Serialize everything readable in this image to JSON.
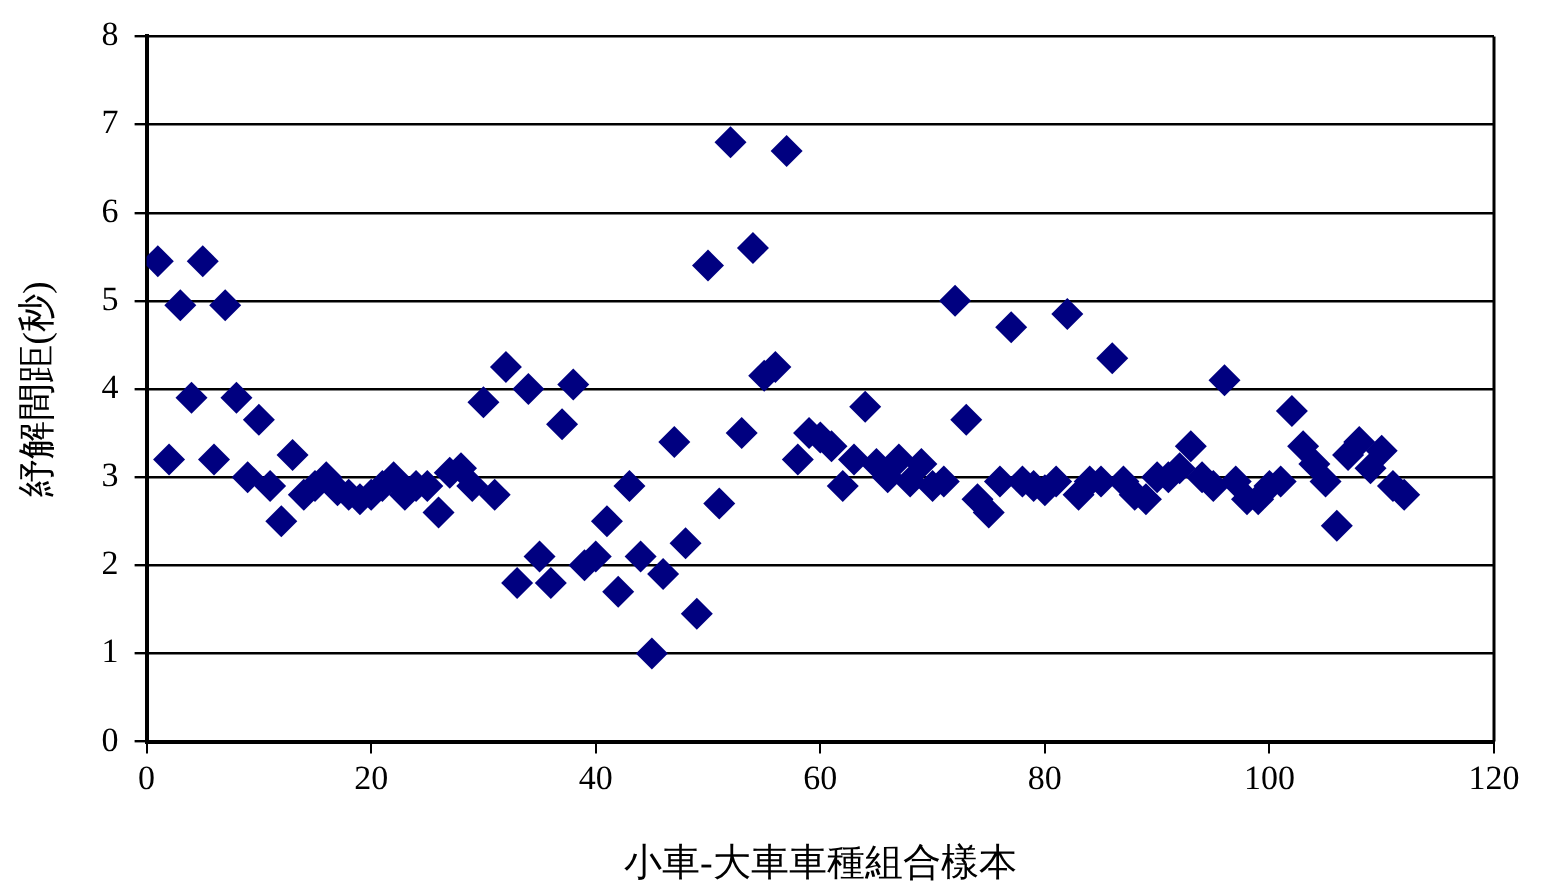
{
  "chart_data": {
    "type": "scatter",
    "xlabel": "小車-大車車種組合樣本",
    "ylabel": "紓解間距(秒)",
    "x": [
      1,
      2,
      3,
      4,
      5,
      6,
      7,
      8,
      9,
      10,
      11,
      12,
      13,
      14,
      15,
      16,
      17,
      18,
      19,
      20,
      21,
      22,
      23,
      24,
      25,
      26,
      27,
      28,
      29,
      30,
      31,
      32,
      33,
      34,
      35,
      36,
      37,
      38,
      39,
      40,
      41,
      42,
      43,
      44,
      45,
      46,
      47,
      48,
      49,
      50,
      51,
      52,
      53,
      54,
      55,
      56,
      57,
      58,
      59,
      60,
      61,
      62,
      63,
      64,
      65,
      66,
      67,
      68,
      69,
      70,
      71,
      72,
      73,
      74,
      75,
      76,
      77,
      78,
      79,
      80,
      81,
      82,
      83,
      84,
      85,
      86,
      87,
      88,
      89,
      90,
      91,
      92,
      93,
      94,
      95,
      96,
      97,
      98,
      99,
      100,
      101,
      102,
      103,
      104,
      105,
      106,
      107,
      108,
      109,
      110,
      111,
      112
    ],
    "series": [
      {
        "color": "#000080",
        "values": [
          5.45,
          3.2,
          4.95,
          3.9,
          5.45,
          3.2,
          4.95,
          3.9,
          3.0,
          3.65,
          2.9,
          2.5,
          3.25,
          2.8,
          2.9,
          3.0,
          2.85,
          2.8,
          2.75,
          2.8,
          2.9,
          3.0,
          2.8,
          2.9,
          2.9,
          2.6,
          3.05,
          3.1,
          2.9,
          3.85,
          2.8,
          4.25,
          1.8,
          4.0,
          2.1,
          1.8,
          3.6,
          4.05,
          2.0,
          2.1,
          2.5,
          1.7,
          2.9,
          2.1,
          1.0,
          1.9,
          3.4,
          2.25,
          1.45,
          5.4,
          2.7,
          6.8,
          3.5,
          5.6,
          4.15,
          4.25,
          6.7,
          3.2,
          3.5,
          3.45,
          3.35,
          2.9,
          3.2,
          3.8,
          3.15,
          3.0,
          3.2,
          2.95,
          3.15,
          2.9,
          2.95,
          5.0,
          3.65,
          2.75,
          2.6,
          2.95,
          4.7,
          2.95,
          2.9,
          2.85,
          2.95,
          4.85,
          2.8,
          2.95,
          2.95,
          4.35,
          2.95,
          2.8,
          2.75,
          3.0,
          3.0,
          3.1,
          3.35,
          3.0,
          2.9,
          4.1,
          2.95,
          2.75,
          2.75,
          2.9,
          2.95,
          3.75,
          3.35,
          3.15,
          2.95,
          2.45,
          3.25,
          3.4,
          3.1,
          3.3,
          2.9,
          2.8
        ]
      }
    ],
    "xlim": [
      0,
      120
    ],
    "xticks": [
      0,
      20,
      40,
      60,
      80,
      100,
      120
    ],
    "ylim": [
      0,
      8
    ],
    "yticks": [
      0,
      1,
      2,
      3,
      4,
      5,
      6,
      7,
      8
    ],
    "grid": "y",
    "legend": false,
    "marker": "diamond"
  }
}
